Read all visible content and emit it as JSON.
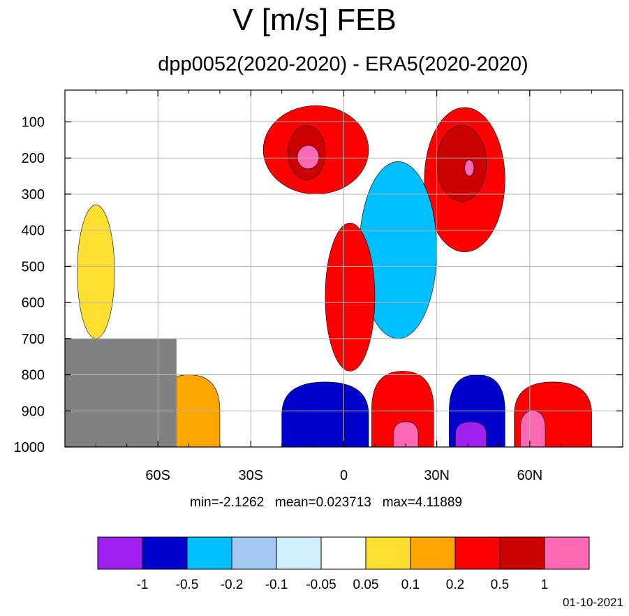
{
  "title": "V [m/s] FEB",
  "subtitle": "dpp0052(2020-2020) - ERA5(2020-2020)",
  "stats": {
    "min": "min=-2.1262",
    "mean": "mean=0.023713",
    "max": "max=4.11889"
  },
  "date": "01-10-2021",
  "chart_data": {
    "type": "heatmap",
    "title": "V [m/s] FEB",
    "subtitle": "dpp0052(2020-2020) - ERA5(2020-2020)",
    "x_axis": {
      "range": [
        -90,
        90
      ],
      "ticks": [
        -60,
        -30,
        0,
        30,
        60
      ],
      "tick_labels": [
        "60S",
        "30S",
        "0",
        "30N",
        "60N"
      ]
    },
    "y_axis": {
      "range": [
        1000,
        0
      ],
      "ticks": [
        100,
        200,
        300,
        400,
        500,
        600,
        700,
        800,
        900,
        1000
      ],
      "tick_labels": [
        "100",
        "200",
        "300",
        "400",
        "500",
        "600",
        "700",
        "800",
        "900",
        "1000"
      ]
    },
    "grid": true,
    "colorbar": {
      "levels": [
        "-1",
        "-0.5",
        "-0.2",
        "-0.1",
        "-0.05",
        "0.05",
        "0.1",
        "0.2",
        "0.5",
        "1"
      ],
      "colors": [
        "#a020f0",
        "#0000cd",
        "#00bfff",
        "#a0c8f0",
        "#d0f0ff",
        "#ffffff",
        "#ffe030",
        "#ffa500",
        "#ff0000",
        "#cc0000",
        "#ff69b4"
      ]
    },
    "statistics": {
      "min": -2.1262,
      "mean": 0.023713,
      "max": 4.11889
    },
    "regions": [
      {
        "name": "upper-tropical-southern-jet",
        "lat": [
          -26,
          8
        ],
        "p": [
          55,
          300
        ],
        "level": 8
      },
      {
        "name": "upper-tropical-southern-jet-core",
        "lat": [
          -18,
          -6
        ],
        "p": [
          110,
          260
        ],
        "level": 9
      },
      {
        "name": "upper-tropical-southern-jet-max",
        "lat": [
          -15,
          -8
        ],
        "p": [
          165,
          230
        ],
        "level": 10
      },
      {
        "name": "upper-northern-jet",
        "lat": [
          26,
          52
        ],
        "p": [
          60,
          460
        ],
        "level": 8
      },
      {
        "name": "upper-northern-jet-core",
        "lat": [
          30,
          46
        ],
        "p": [
          110,
          320
        ],
        "level": 9
      },
      {
        "name": "upper-northern-jet-max",
        "lat": [
          39,
          42
        ],
        "p": [
          205,
          250
        ],
        "level": 10
      },
      {
        "name": "mid-equatorial-south-flow",
        "lat": [
          5,
          30
        ],
        "p": [
          210,
          700
        ],
        "level": 2
      },
      {
        "name": "mid-equatorial-positive",
        "lat": [
          -6,
          10
        ],
        "p": [
          380,
          790
        ],
        "level": 8
      },
      {
        "name": "lower-tropical-negative",
        "lat": [
          -20,
          8
        ],
        "p": [
          820,
          1000
        ],
        "level": 1
      },
      {
        "name": "lower-tropical-positive",
        "lat": [
          9,
          29
        ],
        "p": [
          790,
          1000
        ],
        "level": 8
      },
      {
        "name": "lower-tropical-positive-max",
        "lat": [
          16,
          24
        ],
        "p": [
          930,
          1000
        ],
        "level": 10
      },
      {
        "name": "lower-midlat-negative",
        "lat": [
          34,
          52
        ],
        "p": [
          800,
          1000
        ],
        "level": 1
      },
      {
        "name": "lower-midlat-min",
        "lat": [
          36,
          46
        ],
        "p": [
          930,
          1000
        ],
        "level": 0
      },
      {
        "name": "lower-high-lat-positive",
        "lat": [
          55,
          80
        ],
        "p": [
          820,
          1000
        ],
        "level": 8
      },
      {
        "name": "lower-high-lat-max",
        "lat": [
          57,
          65
        ],
        "p": [
          900,
          1000
        ],
        "level": 10
      },
      {
        "name": "southern-lower-positive",
        "lat": [
          -60,
          -40
        ],
        "p": [
          800,
          1000
        ],
        "level": 7
      },
      {
        "name": "southern-mid-positive",
        "lat": [
          -86,
          -74
        ],
        "p": [
          330,
          700
        ],
        "level": 6
      },
      {
        "name": "antarctic-terrain",
        "lat": [
          -90,
          -54
        ],
        "p": [
          700,
          1000
        ],
        "level": -1
      }
    ]
  }
}
